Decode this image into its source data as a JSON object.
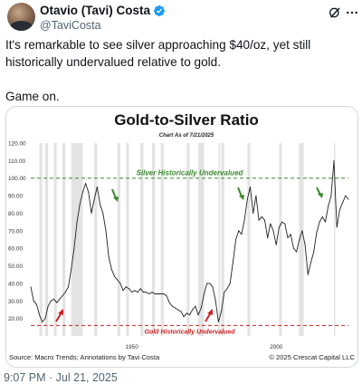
{
  "tweet": {
    "display_name": "Otavio (Tavi) Costa",
    "handle": "@TaviCosta",
    "text_line1": "It's remarkable to see silver approaching $40/oz, yet still historically undervalued relative to gold.",
    "text_line2": "Game on.",
    "timestamp": "9:07 PM · Jul 21, 2025"
  },
  "icons": {
    "verified": "verified-badge-icon",
    "grok": "grok-icon",
    "more": "more-options-icon"
  },
  "colors": {
    "verified": "#1d9bf0",
    "upper_line": "#3a8a2e",
    "lower_line": "#cc2222",
    "series": "#222222",
    "bands": "#e3e3e3"
  },
  "chart_data": {
    "type": "line",
    "title": "Gold-to-Silver Ratio",
    "subtitle": "Chart As of 7/21/2025",
    "ylim": [
      10,
      120
    ],
    "yticks": [
      "120.00",
      "110.00",
      "100.00",
      "90.00",
      "80.00",
      "70.00",
      "60.00",
      "50.00",
      "40.00",
      "30.00",
      "20.00"
    ],
    "xlim": [
      1915,
      2025
    ],
    "xticks": [
      "1950",
      "2000"
    ],
    "grid": false,
    "series": [
      {
        "x": [
          1915,
          1916,
          1917,
          1918,
          1919,
          1920,
          1921,
          1922,
          1923,
          1924,
          1925,
          1926,
          1927,
          1928,
          1929,
          1930,
          1931,
          1932,
          1933,
          1934,
          1935,
          1936,
          1937,
          1938,
          1939,
          1940,
          1941,
          1942,
          1943,
          1944,
          1945,
          1946,
          1947,
          1948,
          1949,
          1950,
          1951,
          1952,
          1953,
          1954,
          1955,
          1956,
          1957,
          1958,
          1959,
          1960,
          1961,
          1962,
          1963,
          1964,
          1965,
          1966,
          1967,
          1968,
          1969,
          1970,
          1971,
          1972,
          1973,
          1974,
          1975,
          1976,
          1977,
          1978,
          1979,
          1980,
          1981,
          1982,
          1983,
          1984,
          1985,
          1986,
          1987,
          1988,
          1989,
          1990,
          1991,
          1992,
          1993,
          1994,
          1995,
          1996,
          1997,
          1998,
          1999,
          2000,
          2001,
          2002,
          2003,
          2004,
          2005,
          2006,
          2007,
          2008,
          2009,
          2010,
          2011,
          2012,
          2013,
          2014,
          2015,
          2016,
          2017,
          2018,
          2019,
          2020,
          2021,
          2022,
          2023,
          2024,
          2025
        ],
        "y": [
          38,
          30,
          28,
          22,
          18,
          20,
          27,
          30,
          31,
          29,
          31,
          33,
          35,
          38,
          48,
          60,
          75,
          85,
          92,
          97,
          92,
          80,
          88,
          95,
          85,
          80,
          70,
          55,
          48,
          44,
          42,
          40,
          36,
          38,
          37,
          35,
          36,
          35,
          37,
          35,
          35,
          34,
          35,
          34,
          34,
          34,
          34,
          33,
          29,
          27,
          26,
          25,
          24,
          21,
          23,
          22,
          25,
          27,
          22,
          26,
          34,
          40,
          40,
          38,
          30,
          18,
          24,
          35,
          37,
          40,
          52,
          65,
          70,
          68,
          76,
          88,
          95,
          80,
          90,
          76,
          78,
          76,
          66,
          74,
          70,
          62,
          72,
          75,
          74,
          66,
          68,
          60,
          58,
          65,
          70,
          62,
          45,
          52,
          58,
          69,
          75,
          78,
          75,
          84,
          90,
          110,
          72,
          82,
          86,
          90,
          88
        ]
      }
    ],
    "threshold_high": {
      "value": 100,
      "label": "Silver Historically Undervalued"
    },
    "threshold_low": {
      "value": 16,
      "label": "Gold Historically Undervalued"
    },
    "recession_bands": [
      [
        1918,
        1919
      ],
      [
        1920,
        1921
      ],
      [
        1923,
        1924
      ],
      [
        1926,
        1927
      ],
      [
        1929,
        1933
      ],
      [
        1937,
        1938
      ],
      [
        1945,
        1946
      ],
      [
        1948,
        1949
      ],
      [
        1953,
        1954
      ],
      [
        1957,
        1958
      ],
      [
        1960,
        1961
      ],
      [
        1969,
        1970
      ],
      [
        1973,
        1975
      ],
      [
        1980,
        1980.6
      ],
      [
        1981,
        1982
      ],
      [
        1990,
        1991
      ],
      [
        2001,
        2001.9
      ],
      [
        2007.9,
        2009.5
      ],
      [
        2020,
        2020.4
      ]
    ],
    "annotations": {
      "source": "Source: Macro Trends; Annotations by Tavi Costa",
      "copyright": "© 2025 Crescat Capital LLC"
    }
  }
}
